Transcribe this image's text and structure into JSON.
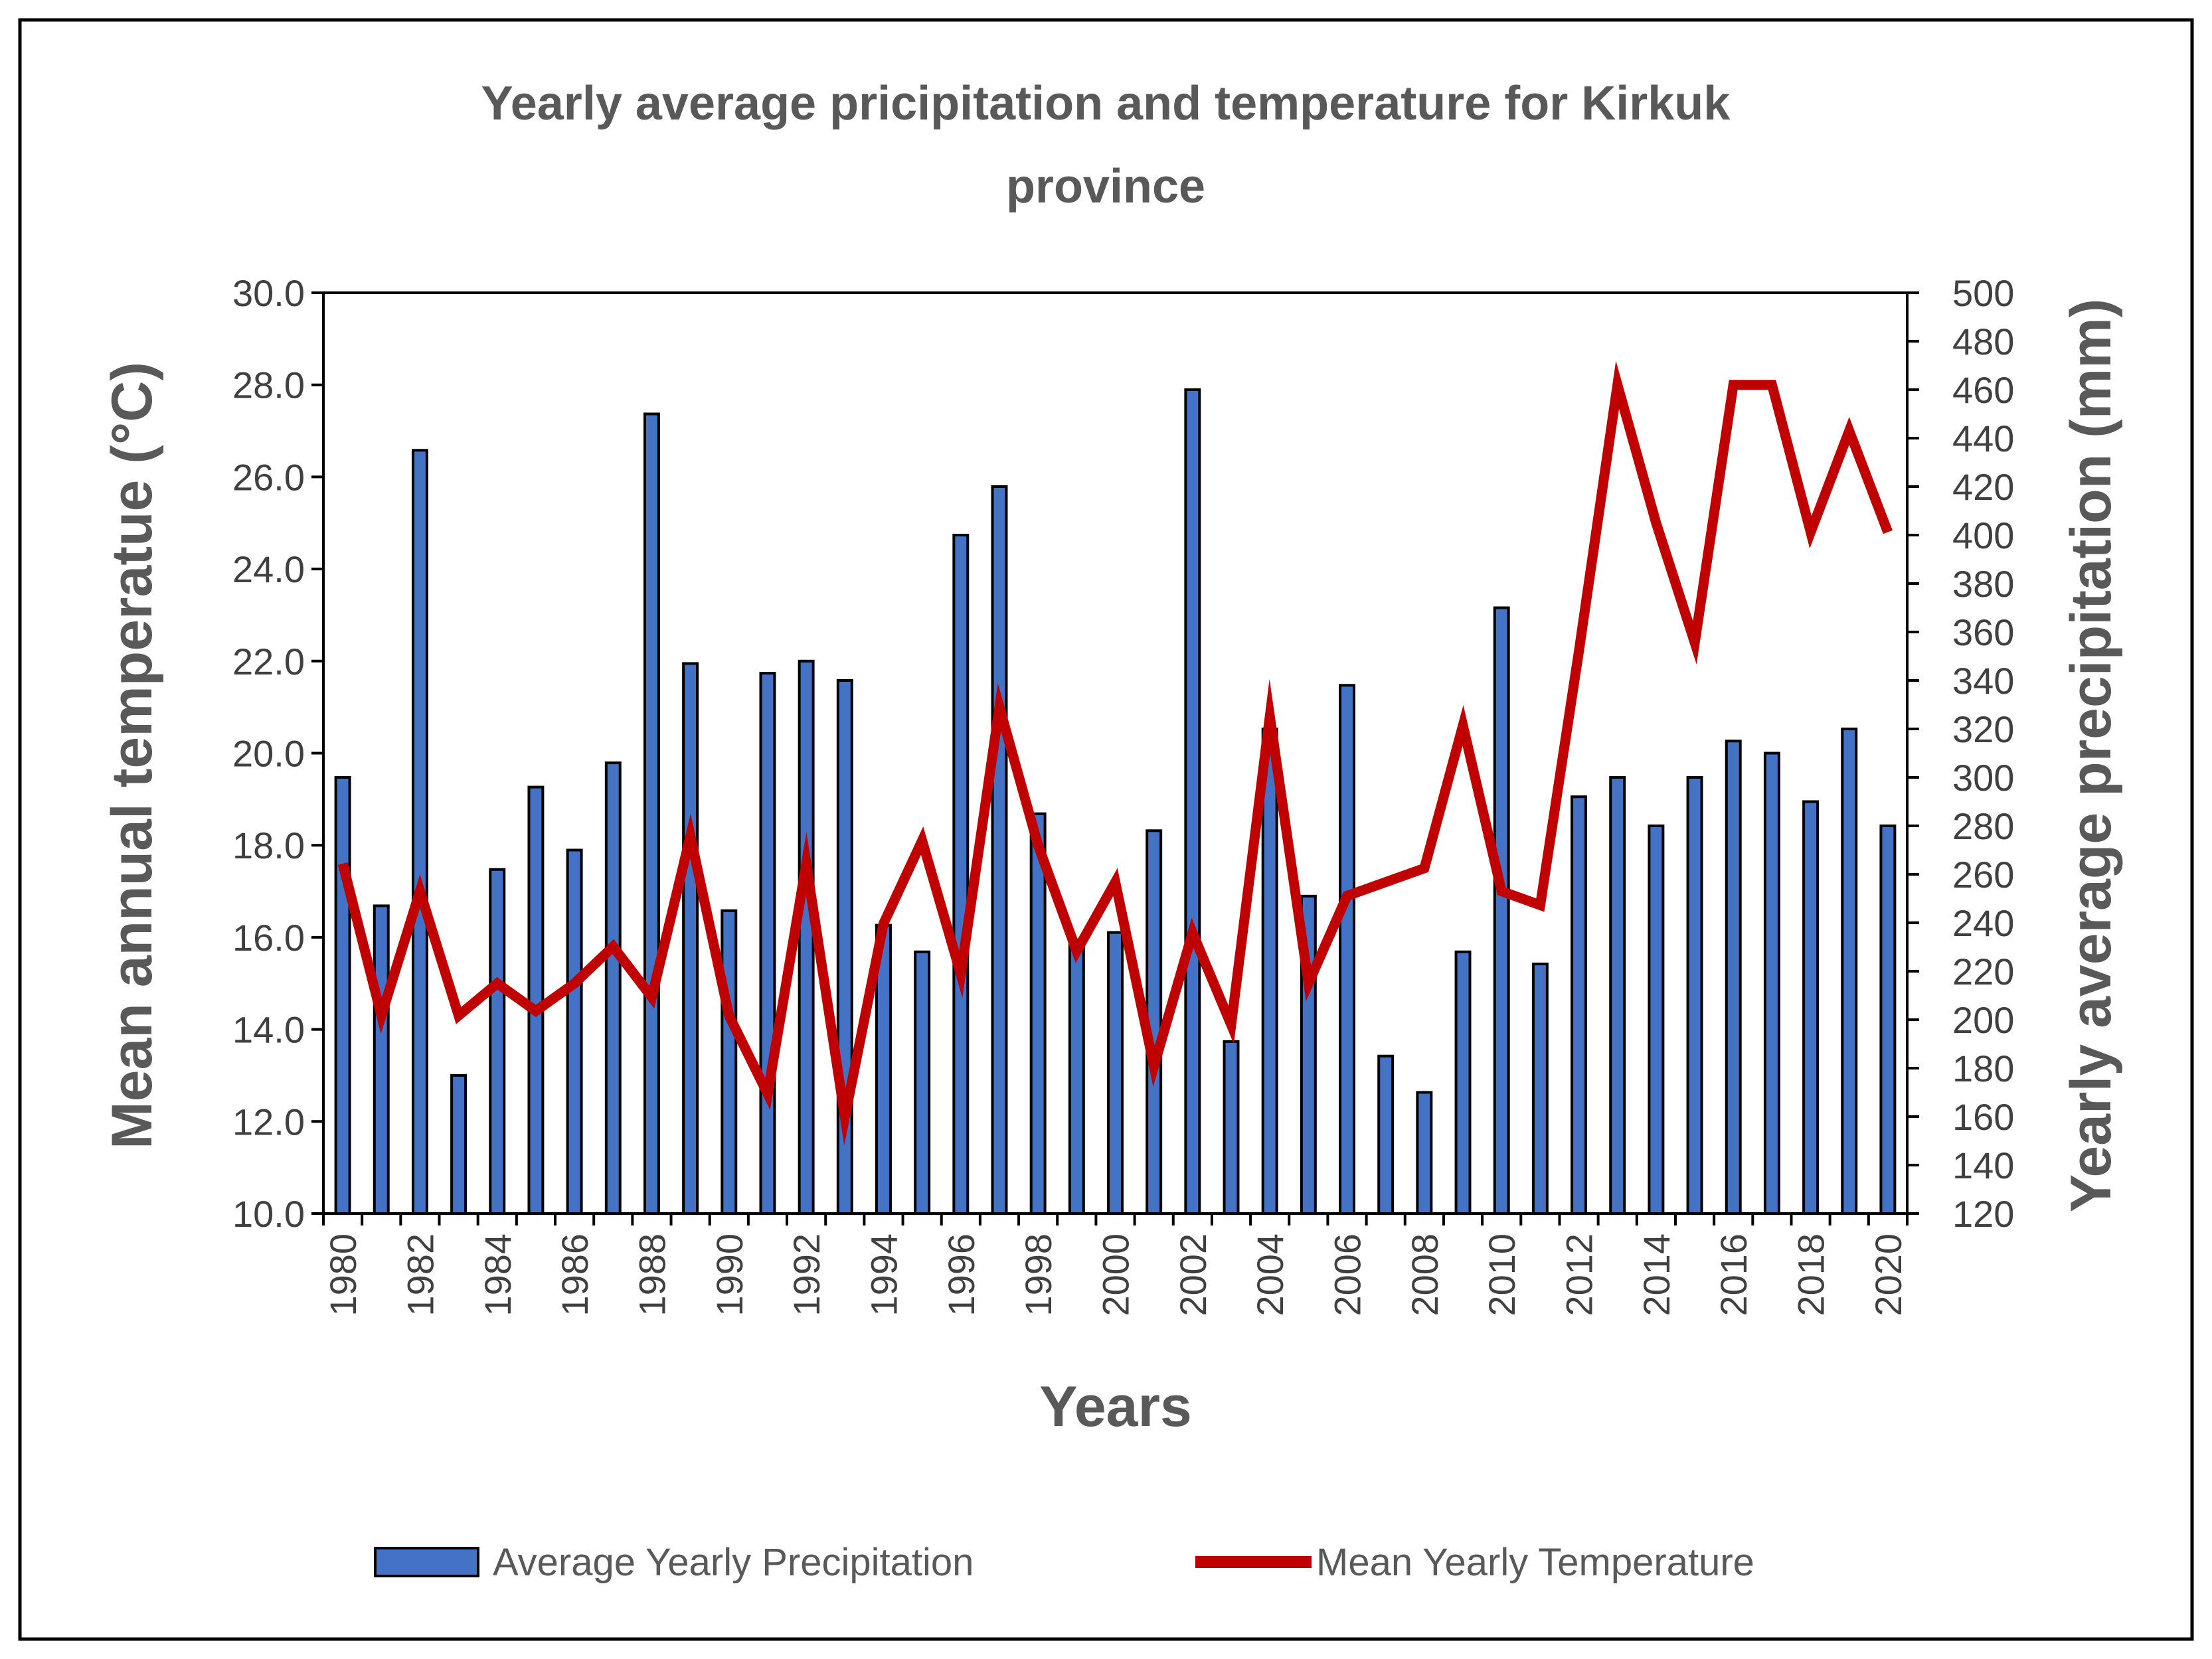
{
  "chart_data": {
    "type": "bar+line",
    "title": "Yearly average pricipitation and temperature for Kirkuk province",
    "title_lines": [
      "Yearly average pricipitation and temperature for Kirkuk",
      "province"
    ],
    "xlabel": "Years",
    "ylabel_left": "Mean annual temperatue (°C)",
    "ylabel_right": "Yearly average precipitation  (mm)",
    "left_axis": {
      "min": 10,
      "max": 30,
      "step": 2,
      "decimals": 1
    },
    "right_axis": {
      "min": 120,
      "max": 500,
      "step": 20,
      "decimals": 0
    },
    "years": [
      1980,
      1981,
      1982,
      1983,
      1984,
      1985,
      1986,
      1987,
      1988,
      1989,
      1990,
      1991,
      1992,
      1993,
      1994,
      1995,
      1996,
      1997,
      1998,
      1999,
      2000,
      2001,
      2002,
      2003,
      2004,
      2005,
      2006,
      2007,
      2008,
      2009,
      2010,
      2011,
      2012,
      2013,
      2014,
      2015,
      2016,
      2017,
      2018,
      2019,
      2020
    ],
    "x_tick_labels": [
      "1980",
      "1982",
      "1984",
      "1986",
      "1988",
      "1990",
      "1992",
      "1994",
      "1996",
      "1998",
      "2000",
      "2002",
      "2004",
      "2006",
      "2008",
      "2010",
      "2012",
      "2014",
      "2016",
      "2018",
      "2020"
    ],
    "series": [
      {
        "name": "Average Yearly  Precipitation",
        "type": "bar",
        "axis": "right",
        "color": "#4472C4",
        "values": [
          300,
          247,
          435,
          177,
          262,
          296,
          270,
          306,
          450,
          347,
          245,
          343,
          348,
          340,
          239,
          228,
          400,
          420,
          285,
          233,
          236,
          278,
          460,
          191,
          320,
          251,
          338,
          185,
          170,
          228,
          370,
          223,
          292,
          300,
          280,
          300,
          315,
          310,
          290,
          320,
          280
        ]
      },
      {
        "name": "Mean Yearly Temperature",
        "type": "line",
        "axis": "left",
        "color": "#C00000",
        "values": [
          17.6,
          14.3,
          17.0,
          14.3,
          15.0,
          14.4,
          15.0,
          15.8,
          14.7,
          18.2,
          14.3,
          12.6,
          17.6,
          12.1,
          16.3,
          18.1,
          15.2,
          21.0,
          18.0,
          15.7,
          17.2,
          13.2,
          16.1,
          14.1,
          20.8,
          15.0,
          16.9,
          17.2,
          17.5,
          20.6,
          17.0,
          16.7,
          22.2,
          28.0,
          25.0,
          22.4,
          28.0,
          28.0,
          24.8,
          27.0,
          24.8
        ]
      }
    ],
    "legend_position": "bottom"
  }
}
